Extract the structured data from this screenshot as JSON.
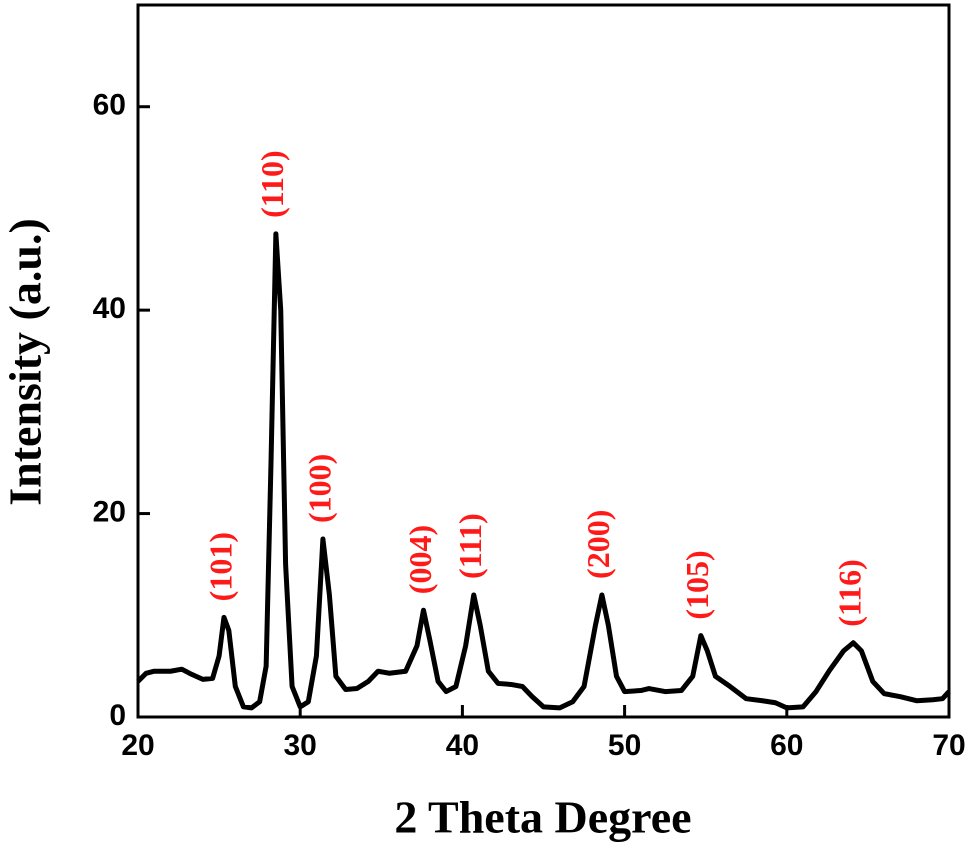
{
  "chart_data": {
    "type": "line",
    "x_label": "2 Theta Degree",
    "y_label": "Intensity (a.u.)",
    "x": [
      20,
      20.5,
      21,
      22,
      22.7,
      23.3,
      24,
      24.6,
      25,
      25.3,
      25.6,
      26,
      26.5,
      27,
      27.5,
      27.9,
      28.2,
      28.5,
      28.8,
      29.1,
      29.5,
      30,
      30.5,
      31,
      31.4,
      31.8,
      32.2,
      32.8,
      33.5,
      34.2,
      34.8,
      35.5,
      36.5,
      37.2,
      37.6,
      38,
      38.5,
      39,
      39.6,
      40.2,
      40.7,
      41.1,
      41.6,
      42.2,
      43,
      43.7,
      44.3,
      45,
      46,
      46.8,
      47.5,
      48.2,
      48.6,
      49,
      49.5,
      50,
      51,
      51.5,
      52.5,
      53.5,
      54.2,
      54.7,
      55.1,
      55.6,
      56.5,
      57.5,
      58.5,
      59.3,
      60,
      61,
      61.8,
      62.6,
      63.5,
      64.1,
      64.6,
      65.3,
      66,
      67,
      68,
      69,
      69.6,
      70
    ],
    "series": [
      {
        "color": "#000000",
        "values": [
          3.5,
          4.3,
          4.5,
          4.5,
          4.7,
          4.2,
          3.7,
          3.8,
          6,
          9.8,
          8.5,
          3,
          1,
          0.9,
          1.5,
          5,
          25,
          47.5,
          40,
          15,
          3,
          1,
          1.5,
          6,
          17.5,
          12,
          4,
          2.7,
          2.8,
          3.5,
          4.5,
          4.3,
          4.5,
          7,
          10.5,
          7.5,
          3.5,
          2.5,
          3,
          7,
          12,
          9,
          4.5,
          3.3,
          3.2,
          3,
          2,
          1,
          0.9,
          1.5,
          3,
          9,
          12,
          9,
          4,
          2.5,
          2.6,
          2.8,
          2.5,
          2.6,
          4,
          8,
          6.5,
          4,
          3,
          1.8,
          1.6,
          1.4,
          0.9,
          1,
          2.5,
          4.5,
          6.5,
          7.3,
          6.5,
          3.5,
          2.3,
          2,
          1.6,
          1.7,
          1.8,
          2.5
        ]
      }
    ],
    "annotations": [
      {
        "text": "(101)",
        "x": 25.3
      },
      {
        "text": "(110)",
        "x": 28.5
      },
      {
        "text": "(100)",
        "x": 31.4
      },
      {
        "text": "(004)",
        "x": 37.6
      },
      {
        "text": "(111)",
        "x": 40.7
      },
      {
        "text": "(200)",
        "x": 48.6
      },
      {
        "text": "(105)",
        "x": 54.7
      },
      {
        "text": "(116)",
        "x": 64.1
      }
    ],
    "xlim": [
      20,
      70
    ],
    "ylim": [
      0,
      70
    ],
    "xticks": [
      20,
      30,
      40,
      50,
      60,
      70
    ],
    "yticks": [
      0,
      20,
      40,
      60
    ]
  }
}
